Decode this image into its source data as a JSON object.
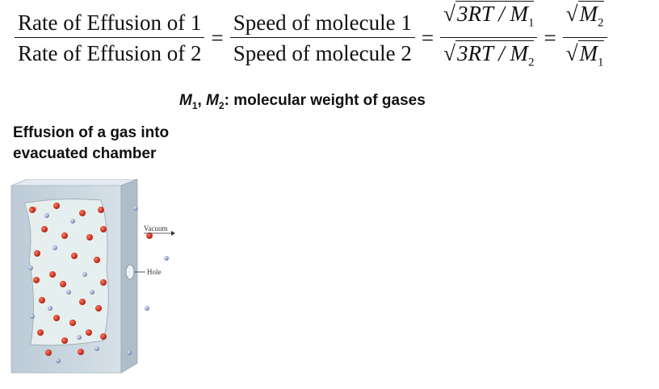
{
  "equation": {
    "term1_num": "Rate of Effusion of 1",
    "term1_den": "Rate of Effusion of 2",
    "term2_num": "Speed of molecule 1",
    "term2_den": "Speed of molecule 2",
    "term3_num": "3RT / M",
    "term3_num_sub": "1",
    "term3_den": "3RT / M",
    "term3_den_sub": "2",
    "term4_num": "M",
    "term4_num_sub": "2",
    "term4_den": "M",
    "term4_den_sub": "1",
    "equals": "="
  },
  "legend": {
    "m1": "M",
    "m1_sub": "1",
    "sep": ", ",
    "m2": "M",
    "m2_sub": "2",
    "text": ": molecular weight of gases"
  },
  "caption": {
    "line1": "Effusion of a gas into",
    "line2": "evacuated chamber"
  },
  "figure": {
    "vacuum_label": "Vacuum",
    "hole_label": "Hole",
    "colors": {
      "red_molecule": "#c0281c",
      "blue_molecule": "#8a9cc8",
      "chamber": "#c9d6df"
    }
  }
}
